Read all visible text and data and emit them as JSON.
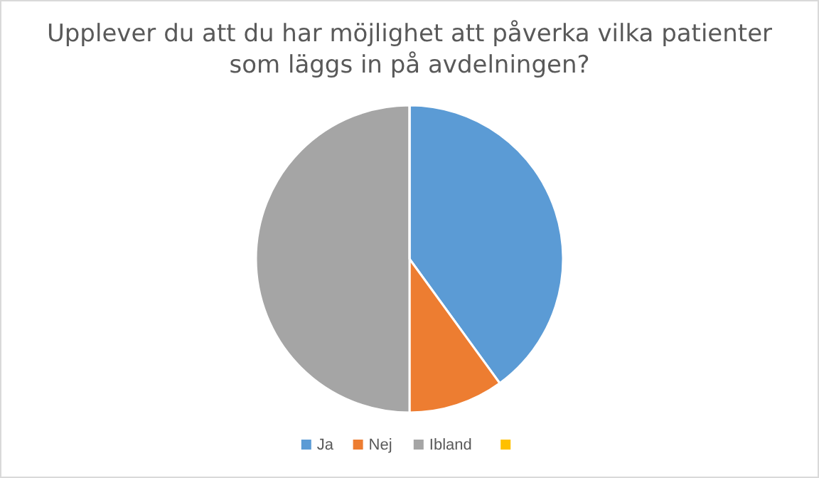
{
  "chart_data": {
    "type": "pie",
    "title": "Upplever du att du har möjlighet att påverka vilka patienter som läggs in på avdelningen?",
    "categories": [
      "Ja",
      "Nej",
      "Ibland",
      null
    ],
    "values": [
      40,
      10,
      50,
      0
    ],
    "colors": [
      "#5b9bd5",
      "#ed7d31",
      "#a5a5a5",
      "#ffc000"
    ],
    "legend": "bottom"
  }
}
